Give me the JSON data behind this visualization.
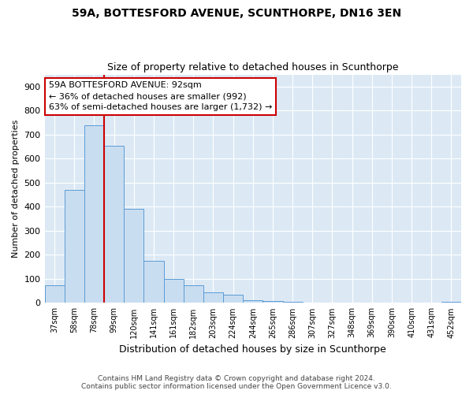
{
  "title1": "59A, BOTTESFORD AVENUE, SCUNTHORPE, DN16 3EN",
  "title2": "Size of property relative to detached houses in Scunthorpe",
  "xlabel": "Distribution of detached houses by size in Scunthorpe",
  "ylabel": "Number of detached properties",
  "categories": [
    "37sqm",
    "58sqm",
    "78sqm",
    "99sqm",
    "120sqm",
    "141sqm",
    "161sqm",
    "182sqm",
    "203sqm",
    "224sqm",
    "244sqm",
    "265sqm",
    "286sqm",
    "307sqm",
    "327sqm",
    "348sqm",
    "369sqm",
    "390sqm",
    "410sqm",
    "431sqm",
    "452sqm"
  ],
  "values": [
    75,
    470,
    740,
    655,
    390,
    175,
    100,
    75,
    45,
    33,
    12,
    8,
    5,
    0,
    0,
    0,
    0,
    0,
    0,
    0,
    5
  ],
  "bar_color": "#c9ddf0",
  "bar_edge_color": "#5b9bd5",
  "vline_x_bin": 2.5,
  "annotation_text1": "59A BOTTESFORD AVENUE: 92sqm",
  "annotation_text2": "← 36% of detached houses are smaller (992)",
  "annotation_text3": "63% of semi-detached houses are larger (1,732) →",
  "vline_color": "#cc0000",
  "annotation_box_color": "#ffffff",
  "annotation_box_edge": "#cc0000",
  "footer1": "Contains HM Land Registry data © Crown copyright and database right 2024.",
  "footer2": "Contains public sector information licensed under the Open Government Licence v3.0.",
  "ylim": [
    0,
    950
  ],
  "yticks": [
    0,
    100,
    200,
    300,
    400,
    500,
    600,
    700,
    800,
    900
  ],
  "plot_bg_color": "#dce9f5"
}
